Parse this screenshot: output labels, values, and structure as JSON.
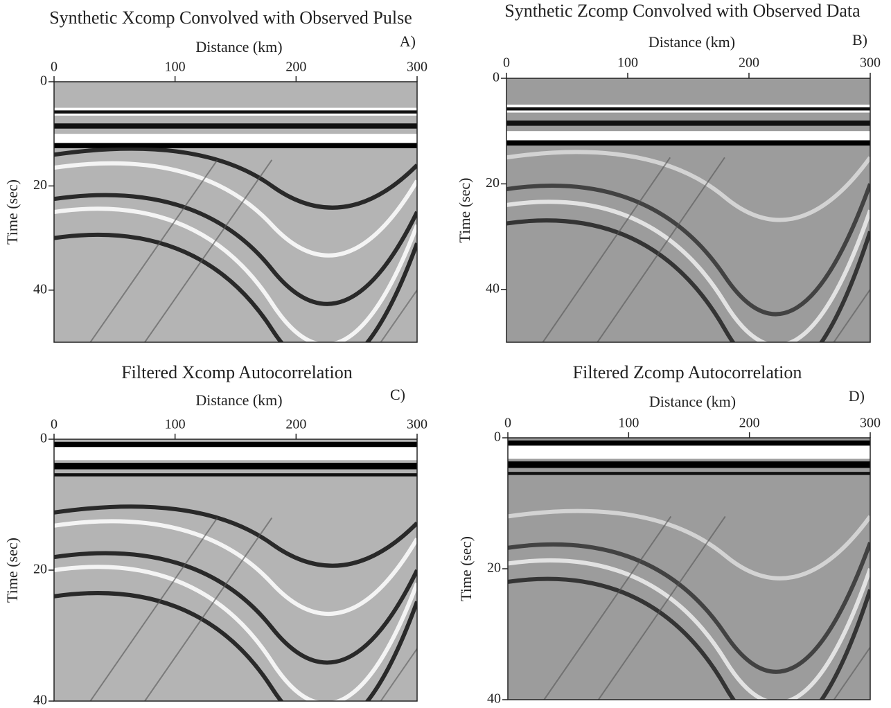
{
  "chart_data": [
    {
      "type": "seismic",
      "title": "Synthetic Xcomp Convolved with Observed Pulse",
      "panel": "A)",
      "x_label": "Distance (km)",
      "y_label": "Time (sec)",
      "xlim": [
        0,
        300
      ],
      "xticks": [
        0,
        100,
        200,
        300
      ],
      "ylim": [
        0,
        50
      ],
      "yticks": [
        0,
        20,
        40
      ]
    },
    {
      "type": "seismic",
      "title": "Synthetic Zcomp Convolved with Observed Data",
      "panel": "B)",
      "x_label": "Distance (km)",
      "y_label": "Time (sec)",
      "xlim": [
        0,
        300
      ],
      "xticks": [
        0,
        100,
        200,
        300
      ],
      "ylim": [
        0,
        50
      ],
      "yticks": [
        0,
        20,
        40
      ]
    },
    {
      "type": "seismic",
      "title": "Filtered Xcomp Autocorrelation",
      "panel": "C)",
      "x_label": "Distance (km)",
      "y_label": "Time (sec)",
      "xlim": [
        0,
        300
      ],
      "xticks": [
        0,
        100,
        200,
        300
      ],
      "ylim": [
        0,
        40
      ],
      "yticks": [
        0,
        20,
        40
      ]
    },
    {
      "type": "seismic",
      "title": "Filtered Zcomp Autocorrelation",
      "panel": "D)",
      "x_label": "Distance (km)",
      "y_label": "Time (sec)",
      "xlim": [
        0,
        300
      ],
      "xticks": [
        0,
        100,
        200,
        300
      ],
      "ylim": [
        0,
        40
      ],
      "yticks": [
        0,
        20,
        40
      ]
    }
  ]
}
